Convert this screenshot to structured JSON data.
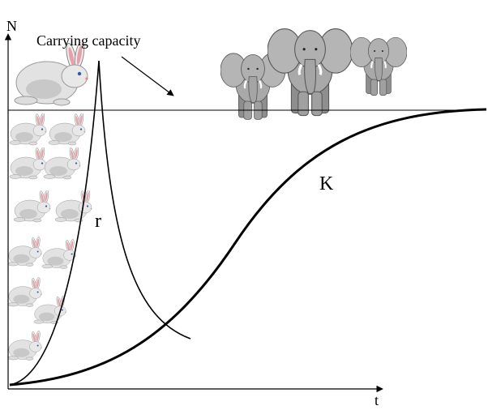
{
  "axes": {
    "y_label": "N",
    "x_label": "t"
  },
  "annotations": {
    "carrying_capacity": "Carrying capacity",
    "r_curve": "r",
    "k_curve": "K"
  }
}
